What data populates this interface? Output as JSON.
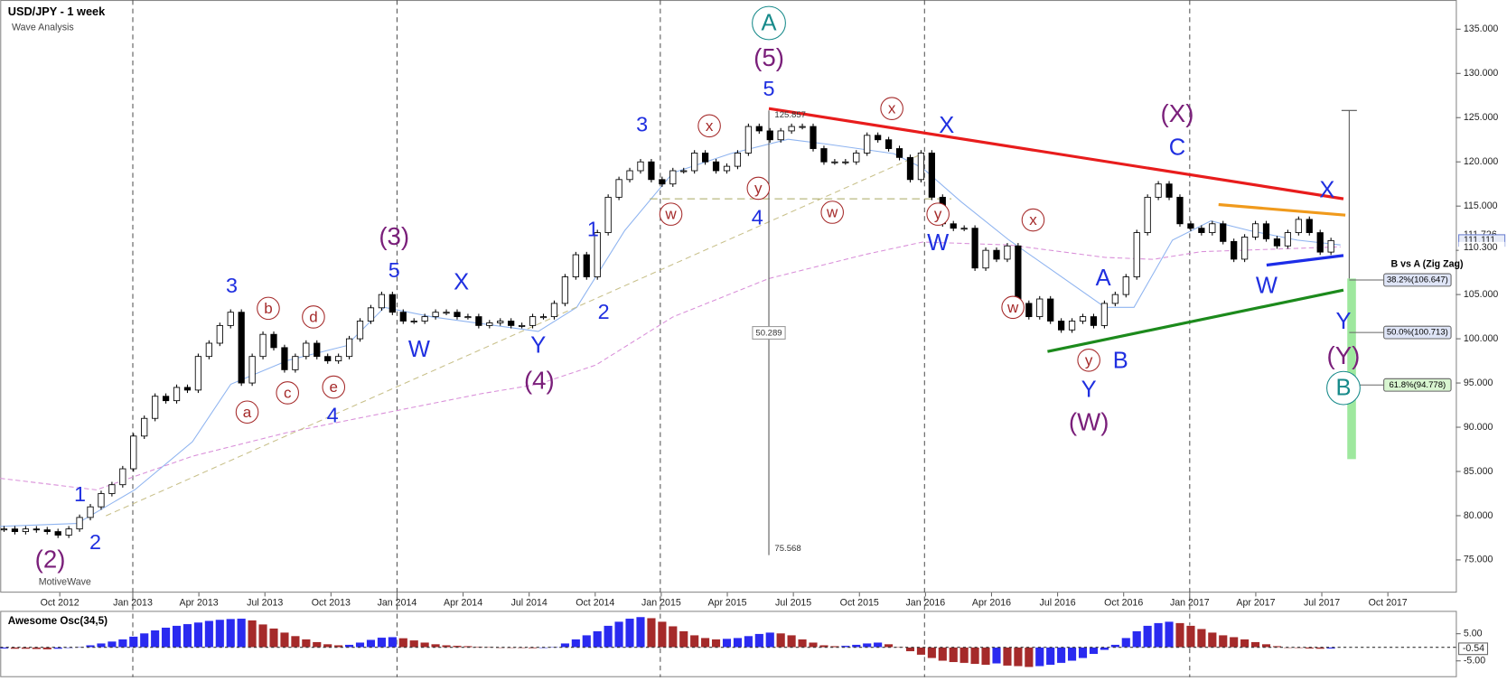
{
  "header": {
    "title": "USD/JPY - 1 week",
    "subtitle": "Wave Analysis",
    "footer": "MotiveWave"
  },
  "chart_data": [
    {
      "type": "candlestick",
      "color_up": "#ffffff",
      "color_down": "#000000",
      "values": [
        78.5,
        78.2,
        78.5,
        78.4,
        78.2,
        77.8,
        78.5,
        79.8,
        81,
        82.5,
        83.5,
        85.3,
        89,
        91,
        93.5,
        93,
        94.5,
        94.2,
        98,
        99.5,
        101.5,
        103,
        95,
        98,
        100.5,
        99,
        96.5,
        98,
        99.5,
        98,
        97.5,
        98,
        100,
        102,
        103.5,
        105,
        103,
        102,
        102,
        102.5,
        103,
        103,
        102.5,
        102.5,
        101.5,
        101.8,
        102,
        101.5,
        101.5,
        102.5,
        102.5,
        104,
        107,
        109.5,
        107,
        112,
        116,
        118,
        119,
        120,
        118,
        117.5,
        119,
        119,
        121,
        120,
        119,
        119.5,
        121,
        124,
        123.5,
        122.5,
        123.5,
        124,
        124,
        121.5,
        120,
        120,
        120,
        121,
        123,
        122.5,
        121.5,
        120.5,
        118,
        121,
        116,
        113,
        112.5,
        112.5,
        108,
        110,
        109,
        110.5,
        104,
        102.5,
        104.5,
        102,
        101,
        102,
        102.5,
        101.5,
        104,
        105,
        107,
        112,
        116,
        117.5,
        116,
        113,
        112.5,
        112,
        113,
        111,
        109,
        111.5,
        113,
        111.3,
        110.5,
        112,
        113.5,
        112,
        109.8,
        111.1
      ],
      "ylim": [
        71.3,
        138.3
      ],
      "yticks": [
        {
          "value": 75,
          "label": "75.000"
        },
        {
          "value": 80,
          "label": "80.000"
        },
        {
          "value": 85,
          "label": "85.000"
        },
        {
          "value": 90,
          "label": "90.000"
        },
        {
          "value": 95,
          "label": "95.000"
        },
        {
          "value": 100,
          "label": "100.000"
        },
        {
          "value": 105,
          "label": "105.000"
        },
        {
          "value": 110,
          "label": "110.000"
        },
        {
          "value": 115,
          "label": "115.000"
        },
        {
          "value": 120,
          "label": "120.000"
        },
        {
          "value": 125,
          "label": "125.000"
        },
        {
          "value": 130,
          "label": "130.000"
        },
        {
          "value": 135,
          "label": "135.000"
        }
      ],
      "time_labels": [
        "Oct 2012",
        "Jan 2013",
        "Apr 2013",
        "Jul 2013",
        "Oct 2013",
        "Jan 2014",
        "Apr 2014",
        "Jul 2014",
        "Oct 2014",
        "Jan 2015",
        "Apr 2015",
        "Jul 2015",
        "Oct 2015",
        "Jan 2016",
        "Apr 2016",
        "Jul 2016",
        "Oct 2016",
        "Jan 2017",
        "Apr 2017",
        "Jul 2017",
        "Oct 2017"
      ],
      "price_labels": [
        {
          "value": 111.726,
          "label": "111.726"
        },
        {
          "value": 111.111,
          "label": "111.111"
        },
        {
          "value": 110.3,
          "label": "110.300"
        }
      ]
    },
    {
      "type": "bar",
      "title": "Awesome Osc(34,5)",
      "color_up": "#2a2af0",
      "color_down": "#a52a2a",
      "values": [
        -0.5,
        -0.6,
        -0.6,
        -0.7,
        -0.8,
        -0.6,
        -0.3,
        0.2,
        0.8,
        1.5,
        2.2,
        3.0,
        4.0,
        5.2,
        6.3,
        7.3,
        8.0,
        8.6,
        9.2,
        9.8,
        10.2,
        10.5,
        10.6,
        10.0,
        8.5,
        7.0,
        5.5,
        4.2,
        3.0,
        2.0,
        1.2,
        0.8,
        1.0,
        1.8,
        2.8,
        3.6,
        3.8,
        3.4,
        2.6,
        1.8,
        1.2,
        0.8,
        0.6,
        0.5,
        0.3,
        0.2,
        0.0,
        -0.2,
        -0.3,
        -0.4,
        -0.3,
        0.2,
        1.5,
        3.0,
        4.5,
        6.0,
        8.0,
        9.5,
        10.6,
        11.2,
        10.8,
        9.5,
        7.8,
        6.0,
        4.5,
        3.5,
        3.0,
        3.2,
        3.5,
        4.2,
        5.0,
        5.5,
        5.2,
        4.5,
        3.0,
        1.8,
        0.8,
        0.5,
        0.6,
        1.0,
        1.5,
        1.8,
        1.2,
        0.2,
        -1.5,
        -2.8,
        -4.0,
        -5.0,
        -5.5,
        -5.8,
        -6.2,
        -6.5,
        -6.0,
        -6.8,
        -7.0,
        -7.3,
        -7.0,
        -6.5,
        -5.8,
        -5.0,
        -4.0,
        -2.5,
        -1.0,
        1.0,
        3.5,
        6.0,
        8.0,
        9.0,
        9.5,
        9.0,
        8.0,
        6.8,
        5.5,
        4.5,
        3.8,
        3.0,
        2.0,
        1.2,
        0.5,
        0.0,
        -0.3,
        -0.5,
        -0.6,
        -0.54
      ],
      "ylim": [
        -11,
        12
      ],
      "yticks": [
        {
          "value": 5,
          "label": "5.00"
        },
        {
          "value": -5,
          "label": "-5.00"
        }
      ],
      "last_value": {
        "value": -0.54,
        "label": "-0.54"
      }
    }
  ],
  "fib": {
    "title": "B vs A (Zig Zag)",
    "levels": [
      {
        "value": 106.647,
        "label": "38.2%(106.647)"
      },
      {
        "value": 100.713,
        "label": "50.0%(100.713)"
      },
      {
        "value": 94.778,
        "label": "61.8%(94.778)"
      }
    ]
  },
  "measure": {
    "top": "125.857",
    "distance": "50.289",
    "bottom": "75.568"
  },
  "annotations": [
    {
      "text": "(2)",
      "color": "#7a1f7a",
      "circled": false
    },
    {
      "text": "1",
      "color": "#1f2fe0",
      "circled": false
    },
    {
      "text": "2",
      "color": "#1f2fe0",
      "circled": false
    },
    {
      "text": "3",
      "color": "#1f2fe0",
      "circled": false
    },
    {
      "text": "a",
      "color": "#a52a2a",
      "circled": true
    },
    {
      "text": "b",
      "color": "#a52a2a",
      "circled": true
    },
    {
      "text": "c",
      "color": "#a52a2a",
      "circled": true
    },
    {
      "text": "d",
      "color": "#a52a2a",
      "circled": true
    },
    {
      "text": "e",
      "color": "#a52a2a",
      "circled": true
    },
    {
      "text": "4",
      "color": "#1f2fe0",
      "circled": false
    },
    {
      "text": "(3)",
      "color": "#7a1f7a",
      "circled": false
    },
    {
      "text": "5",
      "color": "#1f2fe0",
      "circled": false
    },
    {
      "text": "W",
      "color": "#1f2fe0",
      "circled": false
    },
    {
      "text": "X",
      "color": "#1f2fe0",
      "circled": false
    },
    {
      "text": "Y",
      "color": "#1f2fe0",
      "circled": false
    },
    {
      "text": "(4)",
      "color": "#7a1f7a",
      "circled": false
    },
    {
      "text": "1",
      "color": "#1f2fe0",
      "circled": false
    },
    {
      "text": "2",
      "color": "#1f2fe0",
      "circled": false
    },
    {
      "text": "3",
      "color": "#1f2fe0",
      "circled": false
    },
    {
      "text": "w",
      "color": "#a52a2a",
      "circled": true
    },
    {
      "text": "x",
      "color": "#a52a2a",
      "circled": true
    },
    {
      "text": "4",
      "color": "#1f2fe0",
      "circled": false
    },
    {
      "text": "y",
      "color": "#a52a2a",
      "circled": true
    },
    {
      "text": "5",
      "color": "#1f2fe0",
      "circled": false
    },
    {
      "text": "(5)",
      "color": "#7a1f7a",
      "circled": false
    },
    {
      "text": "A",
      "color": "#178a8a",
      "circled": true
    },
    {
      "text": "w",
      "color": "#a52a2a",
      "circled": true
    },
    {
      "text": "x",
      "color": "#a52a2a",
      "circled": true
    },
    {
      "text": "X",
      "color": "#1f2fe0",
      "circled": false
    },
    {
      "text": "y",
      "color": "#a52a2a",
      "circled": true
    },
    {
      "text": "W",
      "color": "#1f2fe0",
      "circled": false
    },
    {
      "text": "x",
      "color": "#a52a2a",
      "circled": true
    },
    {
      "text": "w",
      "color": "#a52a2a",
      "circled": true
    },
    {
      "text": "A",
      "color": "#1f2fe0",
      "circled": false
    },
    {
      "text": "y",
      "color": "#a52a2a",
      "circled": true
    },
    {
      "text": "B",
      "color": "#1f2fe0",
      "circled": false
    },
    {
      "text": "Y",
      "color": "#1f2fe0",
      "circled": false
    },
    {
      "text": "(W)",
      "color": "#7a1f7a",
      "circled": false
    },
    {
      "text": "(X)",
      "color": "#7a1f7a",
      "circled": false
    },
    {
      "text": "C",
      "color": "#1f2fe0",
      "circled": false
    },
    {
      "text": "X",
      "color": "#1f2fe0",
      "circled": false
    },
    {
      "text": "W",
      "color": "#1f2fe0",
      "circled": false
    },
    {
      "text": "Y",
      "color": "#1f2fe0",
      "circled": false
    },
    {
      "text": "(Y)",
      "color": "#7a1f7a",
      "circled": false
    },
    {
      "text": "B",
      "color": "#178a8a",
      "circled": true
    }
  ]
}
